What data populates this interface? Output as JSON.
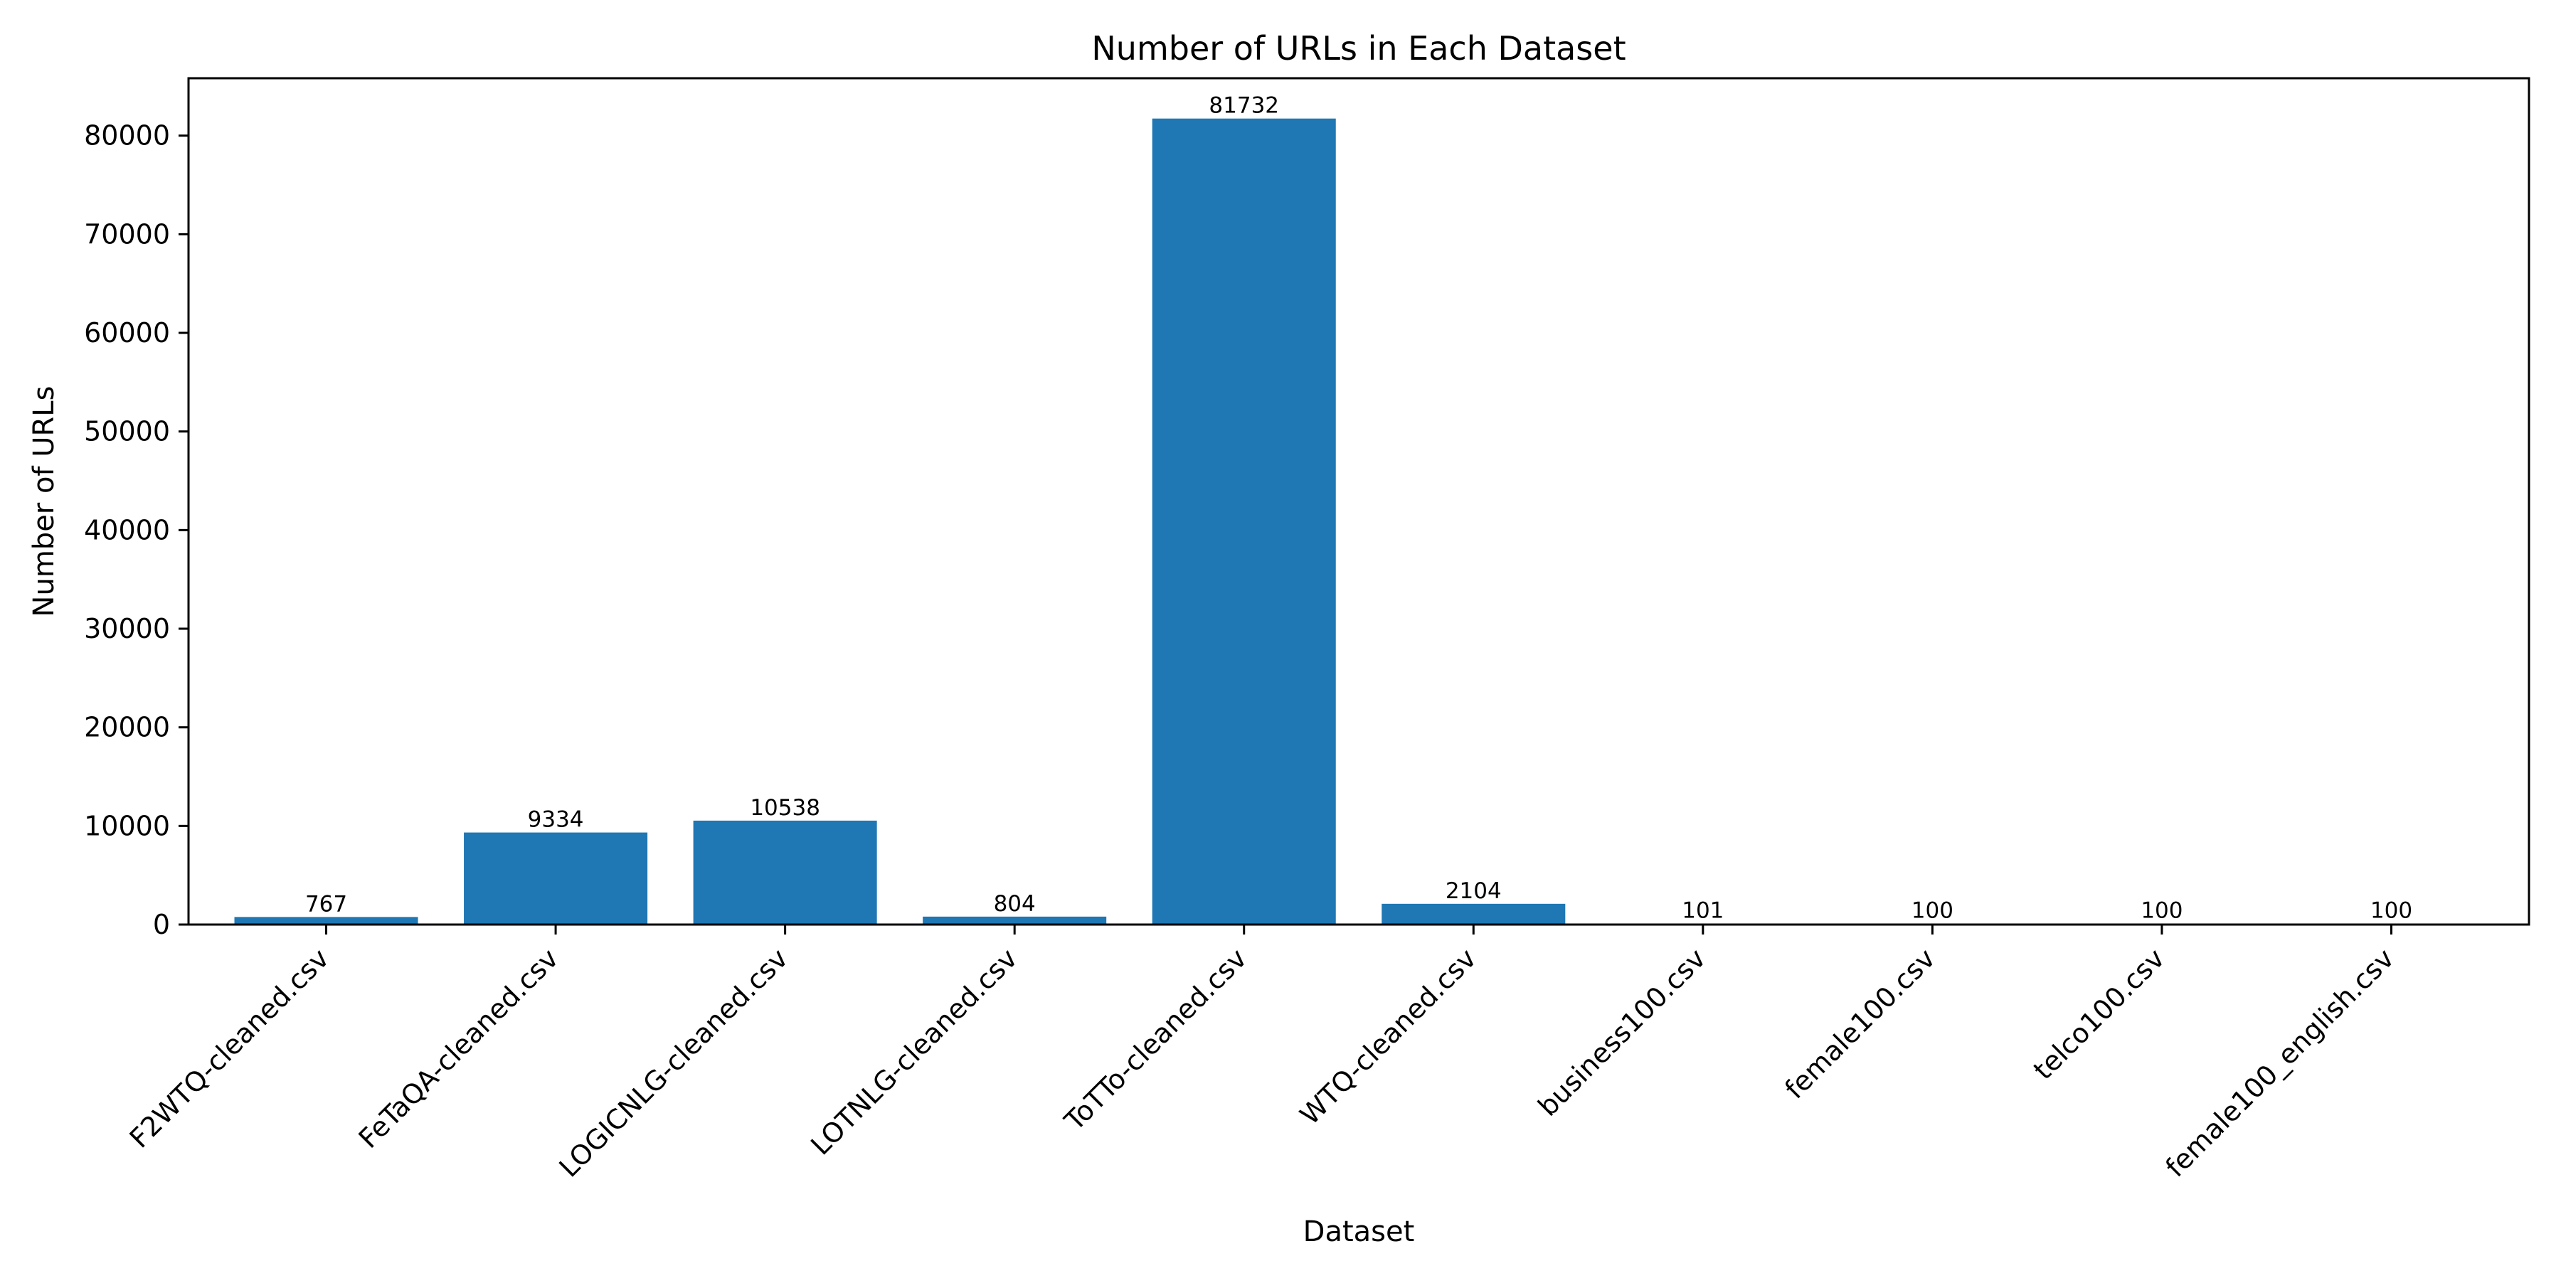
{
  "chart_data": {
    "type": "bar",
    "title": "Number of URLs in Each Dataset",
    "xlabel": "Dataset",
    "ylabel": "Number of URLs",
    "categories": [
      "F2WTQ-cleaned.csv",
      "FeTaQA-cleaned.csv",
      "LOGICNLG-cleaned.csv",
      "LOTNLG-cleaned.csv",
      "ToTTo-cleaned.csv",
      "WTQ-cleaned.csv",
      "business100.csv",
      "female100.csv",
      "telco100.csv",
      "female100_english.csv"
    ],
    "values": [
      767,
      9334,
      10538,
      804,
      81732,
      2104,
      101,
      100,
      100,
      100
    ],
    "data_labels": [
      "767",
      "9334",
      "10538",
      "804",
      "81732",
      "2104",
      "101",
      "100",
      "100",
      "100"
    ],
    "yticks": [
      0,
      10000,
      20000,
      30000,
      40000,
      50000,
      60000,
      70000,
      80000
    ],
    "ytick_labels": [
      "0",
      "10000",
      "20000",
      "30000",
      "40000",
      "50000",
      "60000",
      "70000",
      "80000"
    ],
    "ylim": [
      0,
      85820
    ],
    "grid": false,
    "legend": "none",
    "bar_color": "#1f77b4"
  }
}
